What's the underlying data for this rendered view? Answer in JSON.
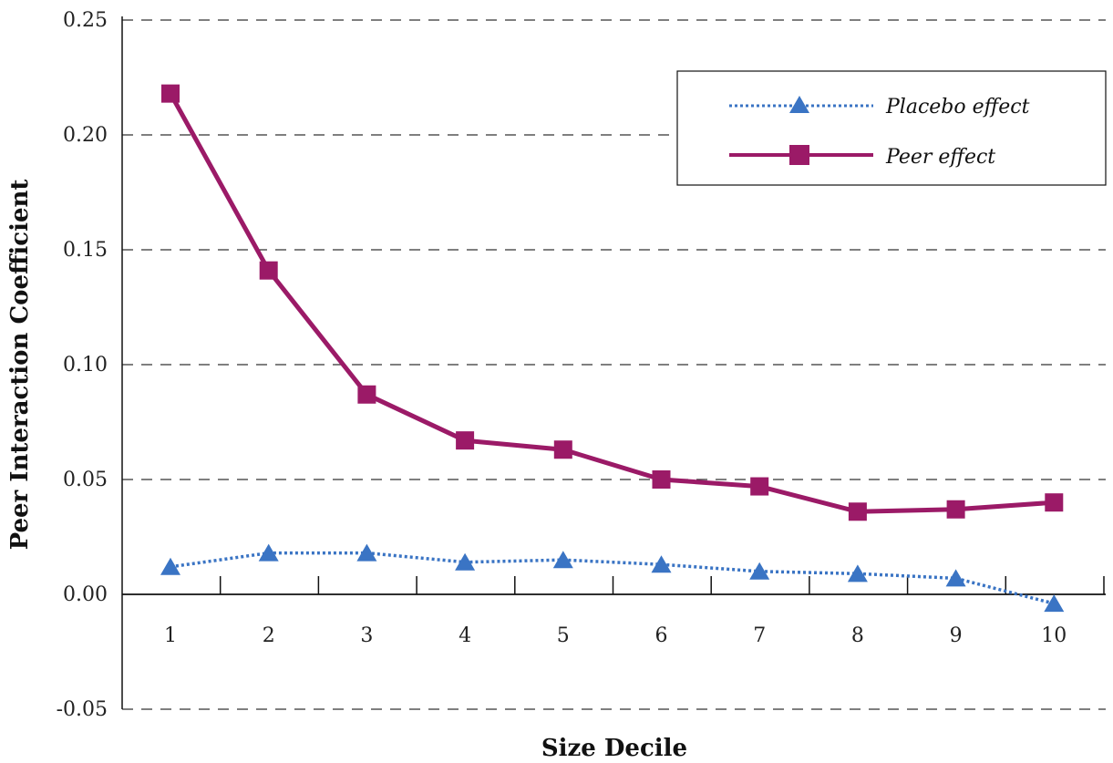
{
  "chart_data": {
    "type": "line",
    "xlabel": "Size Decile",
    "ylabel": "Peer Interaction Coefficient",
    "categories": [
      "1",
      "2",
      "3",
      "4",
      "5",
      "6",
      "7",
      "8",
      "9",
      "10"
    ],
    "y_ticks": [
      "0.25",
      "0.20",
      "0.15",
      "0.10",
      "0.05",
      "0.00",
      "-0.05"
    ],
    "ylim": [
      -0.05,
      0.25
    ],
    "grid": "horizontal dashed",
    "legend_position": "top-right",
    "series": [
      {
        "name": "Placebo effect",
        "marker": "triangle",
        "line_style": "dotted",
        "color": "#3a74c4",
        "values": [
          0.012,
          0.018,
          0.018,
          0.014,
          0.015,
          0.013,
          0.01,
          0.009,
          0.007,
          -0.004
        ]
      },
      {
        "name": "Peer effect",
        "marker": "square",
        "line_style": "solid",
        "color": "#9b1a67",
        "values": [
          0.218,
          0.141,
          0.087,
          0.067,
          0.063,
          0.05,
          0.047,
          0.036,
          0.037,
          0.04
        ]
      }
    ]
  }
}
